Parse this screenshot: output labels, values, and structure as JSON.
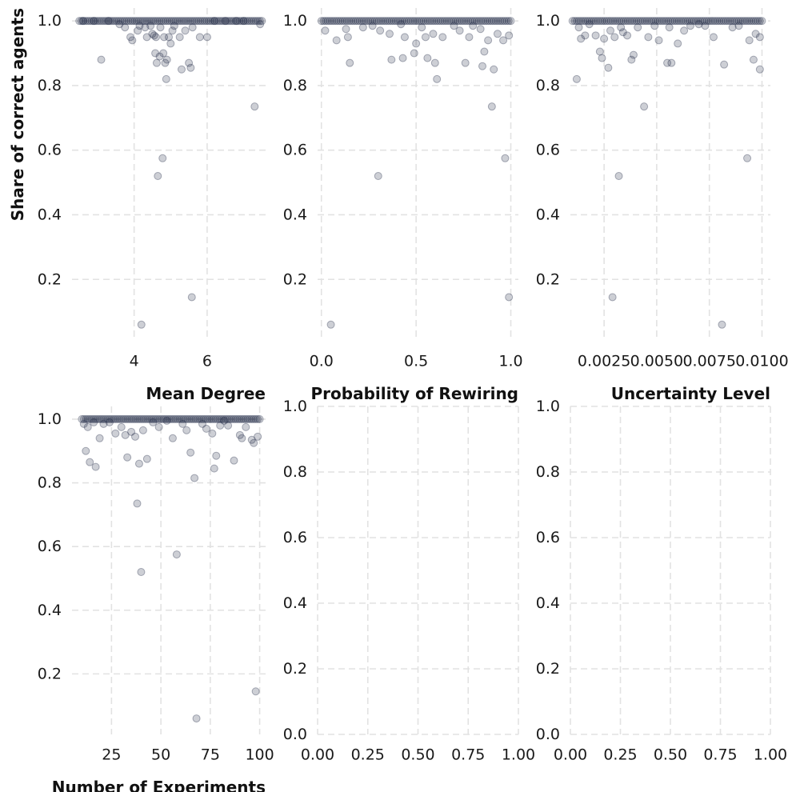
{
  "chart_data": [
    {
      "type": "scatter",
      "xlabel": "Mean Degree",
      "ylabel": "Share of correct agents",
      "xlim": [
        2.3,
        7.6
      ],
      "ylim": [
        0.01,
        1.04
      ],
      "xticks": [
        4,
        6
      ],
      "xtick_labels": [
        "4",
        "6"
      ],
      "yticks": [
        0.2,
        0.4,
        0.6,
        0.8,
        1.0
      ],
      "ytick_labels": [
        "0.2",
        "0.4",
        "0.6",
        "0.8",
        "1.0"
      ],
      "grid": true,
      "color": "#1c2541",
      "saturated_band": {
        "x_from": 2.5,
        "x_to": 7.5,
        "y": 1.0
      },
      "points": [
        [
          2.6,
          1.0
        ],
        [
          2.9,
          1.0
        ],
        [
          3.1,
          0.88
        ],
        [
          3.3,
          1.0
        ],
        [
          3.6,
          0.99
        ],
        [
          3.75,
          0.98
        ],
        [
          3.9,
          0.95
        ],
        [
          3.95,
          0.94
        ],
        [
          4.1,
          0.97
        ],
        [
          4.15,
          0.985
        ],
        [
          4.2,
          0.06
        ],
        [
          4.3,
          0.98
        ],
        [
          4.35,
          0.95
        ],
        [
          4.45,
          0.985
        ],
        [
          4.5,
          0.96
        ],
        [
          4.55,
          0.955
        ],
        [
          4.58,
          0.9
        ],
        [
          4.6,
          0.95
        ],
        [
          4.62,
          0.87
        ],
        [
          4.65,
          0.52
        ],
        [
          4.7,
          0.89
        ],
        [
          4.72,
          0.98
        ],
        [
          4.78,
          0.575
        ],
        [
          4.8,
          0.9
        ],
        [
          4.82,
          0.95
        ],
        [
          4.85,
          0.87
        ],
        [
          4.88,
          0.82
        ],
        [
          4.9,
          0.88
        ],
        [
          4.95,
          0.95
        ],
        [
          5.0,
          0.93
        ],
        [
          5.05,
          0.97
        ],
        [
          5.1,
          0.985
        ],
        [
          5.25,
          0.95
        ],
        [
          5.3,
          0.85
        ],
        [
          5.4,
          0.97
        ],
        [
          5.5,
          0.87
        ],
        [
          5.55,
          0.855
        ],
        [
          5.58,
          0.145
        ],
        [
          5.6,
          0.98
        ],
        [
          5.8,
          0.95
        ],
        [
          6.0,
          0.95
        ],
        [
          6.2,
          1.0
        ],
        [
          6.5,
          1.0
        ],
        [
          6.8,
          1.0
        ],
        [
          7.0,
          1.0
        ],
        [
          7.3,
          0.735
        ],
        [
          7.45,
          0.99
        ]
      ]
    },
    {
      "type": "scatter",
      "xlabel": "Probability of Rewiring",
      "ylabel": "",
      "xlim": [
        -0.02,
        1.04
      ],
      "ylim": [
        0.01,
        1.04
      ],
      "xticks": [
        0.0,
        0.5,
        1.0
      ],
      "xtick_labels": [
        "0.0",
        "0.5",
        "1.0"
      ],
      "yticks": [
        0.2,
        0.4,
        0.6,
        0.8,
        1.0
      ],
      "ytick_labels": [
        "0.2",
        "0.4",
        "0.6",
        "0.8",
        "1.0"
      ],
      "grid": true,
      "color": "#1c2541",
      "saturated_band": {
        "x_from": 0.0,
        "x_to": 1.0,
        "y": 1.0
      },
      "points": [
        [
          0.02,
          0.97
        ],
        [
          0.05,
          0.06
        ],
        [
          0.08,
          0.94
        ],
        [
          0.13,
          0.975
        ],
        [
          0.14,
          0.95
        ],
        [
          0.15,
          0.87
        ],
        [
          0.22,
          0.98
        ],
        [
          0.27,
          0.985
        ],
        [
          0.3,
          0.52
        ],
        [
          0.31,
          0.97
        ],
        [
          0.36,
          0.96
        ],
        [
          0.37,
          0.88
        ],
        [
          0.42,
          0.99
        ],
        [
          0.43,
          0.885
        ],
        [
          0.44,
          0.95
        ],
        [
          0.49,
          0.9
        ],
        [
          0.5,
          0.93
        ],
        [
          0.53,
          0.98
        ],
        [
          0.55,
          0.95
        ],
        [
          0.56,
          0.885
        ],
        [
          0.59,
          0.96
        ],
        [
          0.6,
          0.87
        ],
        [
          0.61,
          0.82
        ],
        [
          0.64,
          0.95
        ],
        [
          0.7,
          0.985
        ],
        [
          0.73,
          0.97
        ],
        [
          0.76,
          0.87
        ],
        [
          0.78,
          0.95
        ],
        [
          0.8,
          0.985
        ],
        [
          0.84,
          0.975
        ],
        [
          0.85,
          0.86
        ],
        [
          0.86,
          0.905
        ],
        [
          0.88,
          0.94
        ],
        [
          0.9,
          0.735
        ],
        [
          0.91,
          0.85
        ],
        [
          0.93,
          0.96
        ],
        [
          0.96,
          0.94
        ],
        [
          0.97,
          0.575
        ],
        [
          0.99,
          0.955
        ],
        [
          0.99,
          0.145
        ]
      ]
    },
    {
      "type": "scatter",
      "xlabel": "Uncertainty Level",
      "ylabel": "",
      "xlim": [
        0.0009,
        0.0104
      ],
      "ylim": [
        0.01,
        1.04
      ],
      "xticks": [
        0.0025,
        0.005,
        0.0075,
        0.01
      ],
      "xtick_labels": [
        "0.0025",
        "0.0050",
        "0.0075",
        "0.0100"
      ],
      "yticks": [
        0.2,
        0.4,
        0.6,
        0.8,
        1.0
      ],
      "ytick_labels": [
        "0.2",
        "0.4",
        "0.6",
        "0.8",
        "1.0"
      ],
      "grid": true,
      "color": "#1c2541",
      "saturated_band": {
        "x_from": 0.001,
        "x_to": 0.01,
        "y": 1.0
      },
      "points": [
        [
          0.0012,
          0.82
        ],
        [
          0.0013,
          0.98
        ],
        [
          0.0014,
          0.945
        ],
        [
          0.0016,
          0.955
        ],
        [
          0.0018,
          0.99
        ],
        [
          0.0021,
          0.955
        ],
        [
          0.0023,
          0.905
        ],
        [
          0.0024,
          0.885
        ],
        [
          0.0025,
          0.945
        ],
        [
          0.0027,
          0.855
        ],
        [
          0.0028,
          0.97
        ],
        [
          0.0029,
          0.145
        ],
        [
          0.003,
          0.95
        ],
        [
          0.0032,
          0.52
        ],
        [
          0.0033,
          0.98
        ],
        [
          0.0034,
          0.965
        ],
        [
          0.0036,
          0.955
        ],
        [
          0.0038,
          0.88
        ],
        [
          0.0039,
          0.895
        ],
        [
          0.0041,
          0.98
        ],
        [
          0.0044,
          0.735
        ],
        [
          0.0046,
          0.95
        ],
        [
          0.0049,
          0.985
        ],
        [
          0.0051,
          0.94
        ],
        [
          0.0055,
          0.87
        ],
        [
          0.0056,
          0.98
        ],
        [
          0.0057,
          0.87
        ],
        [
          0.006,
          0.93
        ],
        [
          0.0063,
          0.97
        ],
        [
          0.0066,
          0.985
        ],
        [
          0.007,
          0.99
        ],
        [
          0.0073,
          0.985
        ],
        [
          0.0077,
          0.95
        ],
        [
          0.0081,
          0.06
        ],
        [
          0.0082,
          0.865
        ],
        [
          0.0086,
          0.98
        ],
        [
          0.0089,
          0.985
        ],
        [
          0.0093,
          0.575
        ],
        [
          0.0094,
          0.94
        ],
        [
          0.0096,
          0.88
        ],
        [
          0.0097,
          0.96
        ],
        [
          0.0099,
          0.85
        ],
        [
          0.0099,
          0.95
        ]
      ]
    },
    {
      "type": "scatter",
      "xlabel": "Number of Experiments",
      "ylabel": "",
      "xlim": [
        5,
        103
      ],
      "ylim": [
        0.01,
        1.04
      ],
      "xticks": [
        25,
        50,
        75,
        100
      ],
      "xtick_labels": [
        "25",
        "50",
        "75",
        "100"
      ],
      "yticks": [
        0.2,
        0.4,
        0.6,
        0.8,
        1.0
      ],
      "ytick_labels": [
        "0.2",
        "0.4",
        "0.6",
        "0.8",
        "1.0"
      ],
      "grid": true,
      "color": "#1c2541",
      "saturated_band": {
        "x_from": 10,
        "x_to": 100,
        "y": 1.0
      },
      "points": [
        [
          11,
          0.985
        ],
        [
          12,
          0.9
        ],
        [
          13,
          0.975
        ],
        [
          14,
          0.865
        ],
        [
          16,
          0.99
        ],
        [
          17,
          0.85
        ],
        [
          19,
          0.94
        ],
        [
          21,
          0.985
        ],
        [
          24,
          0.99
        ],
        [
          27,
          0.955
        ],
        [
          30,
          0.975
        ],
        [
          32,
          0.95
        ],
        [
          33,
          0.88
        ],
        [
          35,
          0.96
        ],
        [
          37,
          0.945
        ],
        [
          38,
          0.735
        ],
        [
          39,
          0.86
        ],
        [
          40,
          0.52
        ],
        [
          41,
          0.965
        ],
        [
          43,
          0.875
        ],
        [
          46,
          0.99
        ],
        [
          49,
          0.975
        ],
        [
          53,
          0.995
        ],
        [
          56,
          0.94
        ],
        [
          58,
          0.575
        ],
        [
          61,
          0.985
        ],
        [
          63,
          0.965
        ],
        [
          65,
          0.895
        ],
        [
          67,
          0.815
        ],
        [
          68,
          0.06
        ],
        [
          71,
          0.985
        ],
        [
          73,
          0.97
        ],
        [
          76,
          0.955
        ],
        [
          77,
          0.845
        ],
        [
          78,
          0.885
        ],
        [
          80,
          0.98
        ],
        [
          82,
          0.995
        ],
        [
          84,
          0.98
        ],
        [
          87,
          0.87
        ],
        [
          90,
          0.95
        ],
        [
          91,
          0.94
        ],
        [
          93,
          0.975
        ],
        [
          96,
          0.935
        ],
        [
          97,
          0.925
        ],
        [
          98,
          0.145
        ],
        [
          99,
          0.945
        ]
      ]
    },
    {
      "type": "scatter",
      "xlabel": "",
      "ylabel": "",
      "xlim": [
        0,
        1
      ],
      "ylim": [
        0,
        1
      ],
      "xticks": [
        0,
        0.25,
        0.5,
        0.75,
        1.0
      ],
      "xtick_labels": [
        "0.00",
        "0.25",
        "0.50",
        "0.75",
        "1.00"
      ],
      "yticks": [
        0,
        0.2,
        0.4,
        0.6,
        0.8,
        1.0
      ],
      "ytick_labels": [
        "0.0",
        "0.2",
        "0.4",
        "0.6",
        "0.8",
        "1.0"
      ],
      "grid": true,
      "color": "#1c2541",
      "points": []
    },
    {
      "type": "scatter",
      "xlabel": "",
      "ylabel": "",
      "xlim": [
        0,
        1
      ],
      "ylim": [
        0,
        1
      ],
      "xticks": [
        0,
        0.25,
        0.5,
        0.75,
        1.0
      ],
      "xtick_labels": [
        "0.00",
        "0.25",
        "0.50",
        "0.75",
        "1.00"
      ],
      "yticks": [
        0,
        0.2,
        0.4,
        0.6,
        0.8,
        1.0
      ],
      "ytick_labels": [
        "0.0",
        "0.2",
        "0.4",
        "0.6",
        "0.8",
        "1.0"
      ],
      "grid": true,
      "color": "#1c2541",
      "points": []
    }
  ]
}
